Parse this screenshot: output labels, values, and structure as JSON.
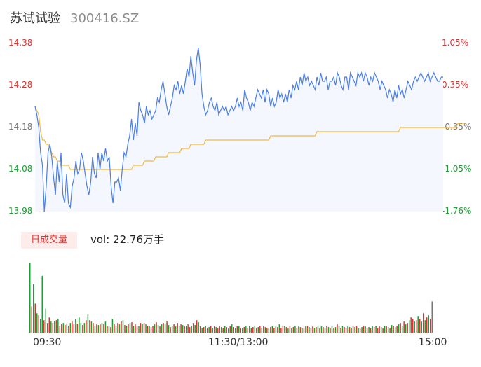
{
  "header": {
    "name": "苏试试验",
    "code": "300416.SZ"
  },
  "volume_panel": {
    "tag": "日成交量",
    "summary": "vol: 22.76万手"
  },
  "colors": {
    "price_line": "#4a7ee8",
    "avg_line": "#f5b83a",
    "area_fill": "#f4f7fd",
    "up": "#e03030",
    "down": "#18a030",
    "flat": "#777777"
  },
  "chart_data": {
    "type": "line",
    "title": "",
    "xlabel": "",
    "ylabel": "",
    "y_left_ticks": [
      "14.38",
      "14.28",
      "14.18",
      "14.08",
      "13.98"
    ],
    "y_right_ticks": [
      "1.05%",
      "0.35%",
      "-0.35%",
      "-1.05%",
      "-1.76%"
    ],
    "x_ticks": [
      "09:30",
      "11:30/13:00",
      "15:00"
    ],
    "ylim": [
      13.98,
      14.38
    ],
    "grid": false,
    "series": [
      {
        "key": "price",
        "values": [
          14.23,
          14.21,
          14.18,
          14.12,
          14.09,
          13.98,
          14.04,
          14.12,
          14.14,
          14.11,
          14.06,
          14.02,
          14.1,
          14.05,
          14.12,
          14.02,
          14.0,
          14.07,
          14.0,
          13.99,
          14.04,
          14.06,
          14.1,
          14.07,
          14.08,
          14.12,
          14.1,
          14.07,
          14.04,
          14.02,
          14.05,
          14.11,
          14.07,
          14.06,
          14.12,
          14.08,
          14.12,
          14.1,
          14.13,
          14.1,
          14.11,
          14.04,
          14.0,
          14.05,
          14.05,
          14.06,
          14.03,
          14.08,
          14.12,
          14.11,
          14.14,
          14.16,
          14.2,
          14.15,
          14.19,
          14.16,
          14.24,
          14.22,
          14.21,
          14.19,
          14.23,
          14.21,
          14.22,
          14.2,
          14.21,
          14.22,
          14.25,
          14.24,
          14.27,
          14.29,
          14.26,
          14.23,
          14.21,
          14.23,
          14.25,
          14.28,
          14.27,
          14.29,
          14.26,
          14.28,
          14.26,
          14.29,
          14.32,
          14.3,
          14.35,
          14.31,
          14.28,
          14.34,
          14.37,
          14.33,
          14.26,
          14.23,
          14.21,
          14.22,
          14.24,
          14.25,
          14.23,
          14.22,
          14.24,
          14.21,
          14.22,
          14.23,
          14.22,
          14.23,
          14.21,
          14.22,
          14.23,
          14.22,
          14.23,
          14.25,
          14.23,
          14.24,
          14.22,
          14.27,
          14.25,
          14.24,
          14.22,
          14.24,
          14.23,
          14.25,
          14.27,
          14.26,
          14.25,
          14.27,
          14.24,
          14.27,
          14.26,
          14.23,
          14.25,
          14.23,
          14.24,
          14.27,
          14.25,
          14.26,
          14.24,
          14.26,
          14.24,
          14.27,
          14.25,
          14.28,
          14.27,
          14.29,
          14.27,
          14.3,
          14.28,
          14.31,
          14.29,
          14.3,
          14.28,
          14.29,
          14.28,
          14.27,
          14.3,
          14.28,
          14.31,
          14.29,
          14.29,
          14.3,
          14.27,
          14.29,
          14.29,
          14.3,
          14.28,
          14.31,
          14.3,
          14.28,
          14.27,
          14.3,
          14.3,
          14.27,
          14.31,
          14.3,
          14.29,
          14.28,
          14.31,
          14.3,
          14.31,
          14.29,
          14.31,
          14.3,
          14.28,
          14.3,
          14.29,
          14.31,
          14.3,
          14.29,
          14.27,
          14.29,
          14.28,
          14.27,
          14.25,
          14.27,
          14.26,
          14.24,
          14.27,
          14.25,
          14.28,
          14.26,
          14.27,
          14.25,
          14.27,
          14.29,
          14.28,
          14.27,
          14.29,
          14.3,
          14.29,
          14.3,
          14.31,
          14.3,
          14.29,
          14.3,
          14.31,
          14.29,
          14.3,
          14.31,
          14.3,
          14.29,
          14.29,
          14.3,
          14.3
        ]
      },
      {
        "key": "average",
        "values": [
          14.23,
          14.22,
          14.21,
          14.17,
          14.15,
          14.15,
          14.14,
          14.14,
          14.13,
          14.12,
          14.11,
          14.11,
          14.1,
          14.1,
          14.09,
          14.09,
          14.09,
          14.09,
          14.09,
          14.08,
          14.08,
          14.08,
          14.08,
          14.08,
          14.08,
          14.08,
          14.08,
          14.08,
          14.08,
          14.08,
          14.08,
          14.08,
          14.08,
          14.08,
          14.08,
          14.08,
          14.08,
          14.08,
          14.08,
          14.08,
          14.08,
          14.08,
          14.08,
          14.08,
          14.08,
          14.08,
          14.08,
          14.08,
          14.08,
          14.08,
          14.08,
          14.08,
          14.08,
          14.09,
          14.09,
          14.09,
          14.09,
          14.09,
          14.09,
          14.1,
          14.1,
          14.1,
          14.1,
          14.1,
          14.1,
          14.11,
          14.11,
          14.11,
          14.11,
          14.11,
          14.11,
          14.11,
          14.12,
          14.12,
          14.12,
          14.12,
          14.12,
          14.12,
          14.12,
          14.13,
          14.13,
          14.13,
          14.13,
          14.13,
          14.14,
          14.14,
          14.14,
          14.14,
          14.14,
          14.14,
          14.14,
          14.14,
          14.15,
          14.15,
          14.15,
          14.15,
          14.15,
          14.15,
          14.15,
          14.15,
          14.15,
          14.15,
          14.15,
          14.15,
          14.15,
          14.15,
          14.15,
          14.15,
          14.15,
          14.15,
          14.15,
          14.15,
          14.15,
          14.15,
          14.15,
          14.15,
          14.15,
          14.15,
          14.15,
          14.15,
          14.15,
          14.15,
          14.15,
          14.15,
          14.15,
          14.15,
          14.15,
          14.16,
          14.16,
          14.16,
          14.16,
          14.16,
          14.16,
          14.16,
          14.16,
          14.16,
          14.16,
          14.16,
          14.16,
          14.16,
          14.16,
          14.16,
          14.16,
          14.16,
          14.16,
          14.16,
          14.16,
          14.16,
          14.16,
          14.16,
          14.16,
          14.16,
          14.17,
          14.17,
          14.17,
          14.17,
          14.17,
          14.17,
          14.17,
          14.17,
          14.17,
          14.17,
          14.17,
          14.17,
          14.17,
          14.17,
          14.17,
          14.17,
          14.17,
          14.17,
          14.17,
          14.17,
          14.17,
          14.17,
          14.17,
          14.17,
          14.17,
          14.17,
          14.17,
          14.17,
          14.17,
          14.17,
          14.17,
          14.17,
          14.17,
          14.17,
          14.17,
          14.17,
          14.17,
          14.17,
          14.17,
          14.17,
          14.17,
          14.17,
          14.17,
          14.17,
          14.17,
          14.18,
          14.18,
          14.18,
          14.18,
          14.18,
          14.18,
          14.18,
          14.18,
          14.18,
          14.18,
          14.18,
          14.18,
          14.18,
          14.18,
          14.18,
          14.18,
          14.18,
          14.18,
          14.18,
          14.18,
          14.18,
          14.18,
          14.18,
          14.18,
          14.18,
          14.18,
          14.18,
          14.18,
          14.18,
          14.18,
          14.18,
          14.19,
          14.19,
          14.19,
          14.19,
          14.19
        ]
      }
    ],
    "volume": {
      "vmax": 100,
      "values": [
        100,
        38,
        70,
        42,
        28,
        25,
        20,
        82,
        18,
        35,
        14,
        22,
        16,
        14,
        17,
        18,
        20,
        10,
        12,
        14,
        11,
        12,
        10,
        14,
        16,
        12,
        20,
        13,
        22,
        14,
        11,
        14,
        18,
        26,
        18,
        16,
        14,
        10,
        12,
        11,
        12,
        14,
        12,
        16,
        10,
        10,
        8,
        20,
        12,
        10,
        14,
        12,
        16,
        18,
        11,
        10,
        12,
        14,
        15,
        10,
        12,
        9,
        10,
        14,
        13,
        14,
        12,
        10,
        9,
        8,
        10,
        12,
        15,
        11,
        9,
        12,
        14,
        13,
        16,
        11,
        8,
        10,
        12,
        9,
        14,
        10,
        12,
        11,
        9,
        10,
        12,
        8,
        10,
        14,
        11,
        18,
        15,
        9,
        7,
        8,
        9,
        6,
        8,
        10,
        7,
        9,
        8,
        6,
        9,
        8,
        7,
        10,
        8,
        6,
        9,
        12,
        8,
        7,
        9,
        10,
        7,
        6,
        8,
        9,
        7,
        10,
        6,
        8,
        9,
        7,
        8,
        10,
        6,
        9,
        8,
        7,
        6,
        8,
        10,
        7,
        9,
        8,
        12,
        7,
        9,
        10,
        8,
        6,
        9,
        7,
        8,
        10,
        7,
        9,
        8,
        6,
        7,
        9,
        10,
        8,
        6,
        9,
        7,
        8,
        10,
        6,
        9,
        8,
        7,
        10,
        8,
        6,
        9,
        7,
        8,
        12,
        9,
        7,
        10,
        8,
        6,
        9,
        8,
        7,
        10,
        8,
        9,
        7,
        6,
        8,
        10,
        9,
        7,
        8,
        6,
        9,
        8,
        10,
        7,
        9,
        8,
        6,
        10,
        9,
        8,
        7,
        11,
        9,
        8,
        10,
        12,
        14,
        10,
        16,
        12,
        14,
        18,
        22,
        20,
        16,
        18,
        24,
        20,
        16,
        28,
        18,
        22,
        25,
        20,
        45
      ],
      "colors": [
        "down",
        "up",
        "down",
        "up",
        "down",
        "up",
        "down",
        "down",
        "up",
        "down",
        "up",
        "up",
        "down",
        "up",
        "down",
        "up",
        "down",
        "up",
        "up",
        "down",
        "up",
        "down",
        "up",
        "down",
        "up",
        "up",
        "down",
        "up",
        "down",
        "down",
        "up",
        "down",
        "up",
        "down",
        "up",
        "down",
        "up",
        "down",
        "up",
        "down",
        "up",
        "down",
        "up",
        "down",
        "up",
        "down",
        "up",
        "down",
        "up",
        "down",
        "up",
        "down",
        "up",
        "down",
        "up",
        "down",
        "up",
        "down",
        "up",
        "down",
        "up",
        "up",
        "down",
        "up",
        "down",
        "up",
        "down",
        "up",
        "down",
        "up",
        "up",
        "down",
        "up",
        "down",
        "up",
        "down",
        "up",
        "down",
        "up",
        "down",
        "up",
        "down",
        "up",
        "down",
        "up",
        "down",
        "up",
        "down",
        "up",
        "down",
        "up",
        "up",
        "down",
        "up",
        "down",
        "up",
        "down",
        "up",
        "down",
        "up",
        "down",
        "up",
        "down",
        "up",
        "down",
        "up",
        "down",
        "up",
        "up",
        "down",
        "up",
        "down",
        "up",
        "down",
        "up",
        "down",
        "up",
        "down",
        "up",
        "down",
        "up",
        "down",
        "up",
        "down",
        "up",
        "down",
        "up",
        "up",
        "down",
        "up",
        "down",
        "up",
        "down",
        "up",
        "down",
        "up",
        "down",
        "up",
        "down",
        "up",
        "down",
        "up",
        "down",
        "up",
        "up",
        "down",
        "up",
        "down",
        "up",
        "down",
        "up",
        "down",
        "up",
        "down",
        "up",
        "down",
        "up",
        "down",
        "up",
        "down",
        "up",
        "up",
        "down",
        "up",
        "down",
        "up",
        "down",
        "up",
        "down",
        "up",
        "down",
        "up",
        "down",
        "up",
        "down",
        "up",
        "down",
        "up",
        "down",
        "up",
        "up",
        "down",
        "up",
        "down",
        "up",
        "down",
        "up",
        "down",
        "up",
        "down",
        "up",
        "down",
        "up",
        "down",
        "up",
        "down",
        "up",
        "down",
        "up",
        "up",
        "down",
        "up",
        "down",
        "up",
        "down",
        "up",
        "down",
        "up",
        "down",
        "up",
        "down",
        "up",
        "down",
        "up",
        "down",
        "up",
        "down",
        "up",
        "up",
        "down",
        "up",
        "down",
        "up",
        "down",
        "up",
        "down",
        "up",
        "down",
        "up",
        "flat"
      ]
    }
  }
}
